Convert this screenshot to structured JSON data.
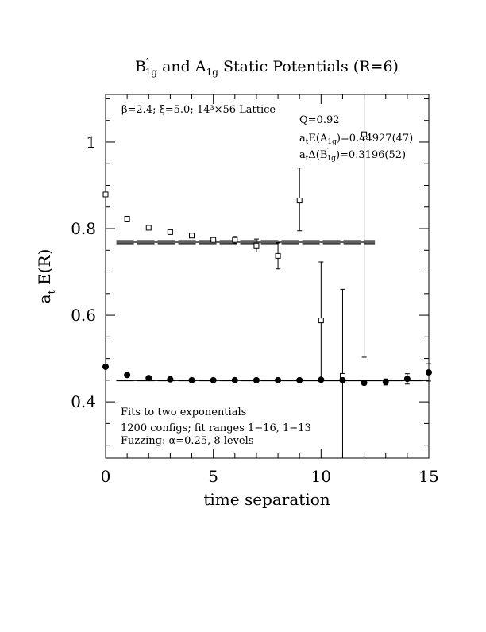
{
  "chart_data": {
    "type": "scatter",
    "title_main": "B",
    "title_sub1": "1g",
    "title_mid": " and A",
    "title_sub2": "1g",
    "title_tail": " Static Potentials (R=6)",
    "xlabel": "time separation",
    "ylabel_a": "a",
    "ylabel_sub": "t",
    "ylabel_tail": " E(R)",
    "xlim": [
      0,
      15
    ],
    "ylim": [
      0.27,
      1.11
    ],
    "xticks": [
      0,
      5,
      10,
      15
    ],
    "xtick_labels": [
      "0",
      "5",
      "10",
      "15"
    ],
    "yticks": [
      0.4,
      0.6,
      0.8,
      1.0
    ],
    "ytick_labels": [
      "0.4",
      "0.6",
      "0.8",
      "1"
    ],
    "grid": false,
    "annotations": {
      "lattice": "β=2.4; ξ=5.0; 14³×56 Lattice",
      "q": "Q=0.92",
      "a1g_pre": "a",
      "a1g_sub_t": "t",
      "a1g_mid": "E(A",
      "a1g_sub": "1g",
      "a1g_val": ")=0.44927(47)",
      "b1g_pre": "a",
      "b1g_sub_t": "t",
      "b1g_mid": "Δ(B",
      "b1g_sub": "1g",
      "b1g_val": ")=0.3196(52)",
      "fit1": "Fits to two exponentials",
      "fit2": "1200 configs; fit ranges 1−16, 1−13",
      "fit3": "Fuzzing: α=0.25, 8 levels"
    },
    "series": [
      {
        "marker": "open-square",
        "x": [
          0,
          1,
          2,
          3,
          4,
          5,
          6,
          7,
          8,
          9,
          10,
          11,
          12
        ],
        "y": [
          0.879,
          0.823,
          0.802,
          0.792,
          0.784,
          0.774,
          0.774,
          0.761,
          0.737,
          0.865,
          0.588,
          0.46,
          1.018
        ],
        "err_lo": [
          0.003,
          0.003,
          0.003,
          0.003,
          0.004,
          0.005,
          0.008,
          0.015,
          0.03,
          0.07,
          0.135,
          0.2,
          0.515
        ],
        "err_hi": [
          0.003,
          0.003,
          0.003,
          0.003,
          0.004,
          0.005,
          0.008,
          0.015,
          0.03,
          0.075,
          0.135,
          0.2,
          0.515
        ]
      },
      {
        "marker": "filled-circle",
        "x": [
          0,
          1,
          2,
          3,
          4,
          5,
          6,
          7,
          8,
          9,
          10,
          11,
          12,
          13,
          14,
          15
        ],
        "y": [
          0.481,
          0.462,
          0.455,
          0.452,
          0.45,
          0.45,
          0.45,
          0.45,
          0.45,
          0.45,
          0.451,
          0.45,
          0.444,
          0.446,
          0.453,
          0.468
        ],
        "err_lo": [
          0.002,
          0.002,
          0.002,
          0.002,
          0.002,
          0.002,
          0.002,
          0.003,
          0.003,
          0.003,
          0.003,
          0.004,
          0.005,
          0.007,
          0.012,
          0.02
        ],
        "err_hi": [
          0.002,
          0.002,
          0.002,
          0.002,
          0.002,
          0.002,
          0.002,
          0.003,
          0.003,
          0.003,
          0.003,
          0.004,
          0.005,
          0.007,
          0.012,
          0.02
        ]
      }
    ],
    "fits": [
      {
        "x_start": 0.5,
        "x_end": 12.5,
        "y": 0.7689,
        "err": 0.0035,
        "style": "dashed-band"
      },
      {
        "x_start": 0.5,
        "x_end": 15,
        "y": 0.44927,
        "err": 0.0005,
        "style": "dashed-band"
      }
    ]
  }
}
